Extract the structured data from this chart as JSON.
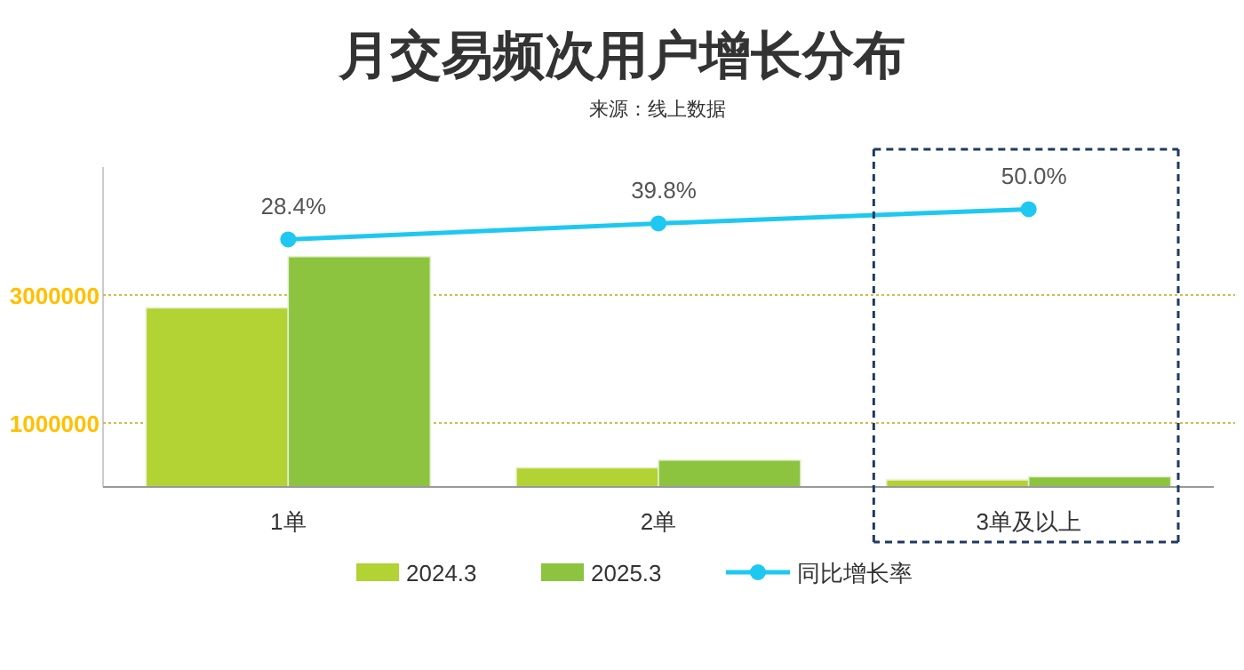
{
  "chart_data": {
    "type": "bar",
    "title": "月交易频次用户增长分布",
    "subtitle": "来源：线上数据",
    "categories": [
      "1单",
      "2单",
      "3单及以上"
    ],
    "series": [
      {
        "name": "2024.3",
        "color": "#b3d233",
        "values": [
          2800000,
          300000,
          110000
        ]
      },
      {
        "name": "2025.3",
        "color": "#8cc43f",
        "values": [
          3600000,
          420000,
          160000
        ]
      },
      {
        "name": "同比增长率",
        "type": "line",
        "axis": "y2",
        "color": "#1ec8f0",
        "values": [
          28.4,
          39.8,
          50.0
        ],
        "value_labels": [
          "28.4%",
          "39.8%",
          "50.0%"
        ]
      }
    ],
    "ylim": [
      0,
      5000000
    ],
    "yticks": [
      1000000,
      3000000
    ],
    "grid": "y",
    "legend": "bottom",
    "marker": "circle"
  }
}
